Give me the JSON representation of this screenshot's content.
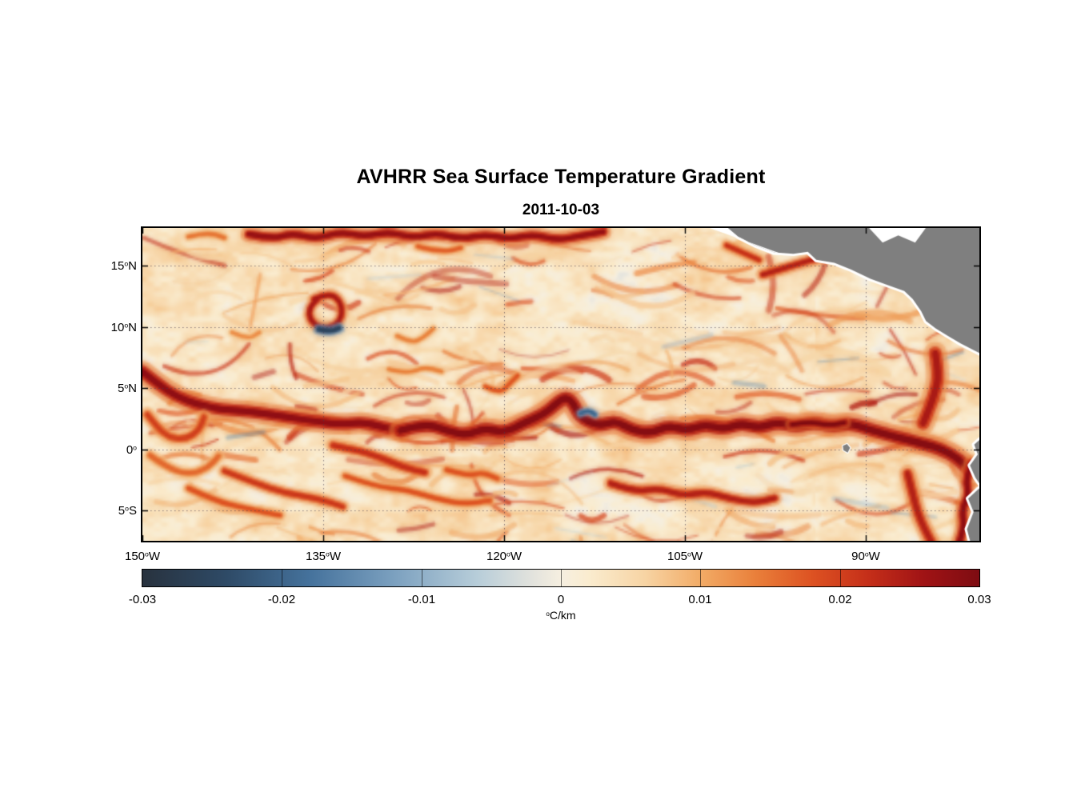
{
  "chart_data": {
    "type": "heatmap",
    "title": "AVHRR Sea Surface Temperature Gradient",
    "date": "2011-10-03",
    "units": "degC/km",
    "lon_range_degW": [
      150,
      80.6
    ],
    "lat_range_deg": [
      -7.5,
      18.1
    ],
    "grid": "dotted",
    "axes": {
      "lat_ticks": [
        {
          "num": "15",
          "deg": "o",
          "dir": "N",
          "value": 15
        },
        {
          "num": "10",
          "deg": "o",
          "dir": "N",
          "value": 10
        },
        {
          "num": "5",
          "deg": "o",
          "dir": "N",
          "value": 5
        },
        {
          "num": "0",
          "deg": "o",
          "dir": "",
          "value": 0
        },
        {
          "num": "5",
          "deg": "o",
          "dir": "S",
          "value": -5
        }
      ],
      "lon_ticks": [
        {
          "num": "150",
          "deg": "o",
          "dir": "W",
          "value": 150
        },
        {
          "num": "135",
          "deg": "o",
          "dir": "W",
          "value": 135
        },
        {
          "num": "120",
          "deg": "o",
          "dir": "W",
          "value": 120
        },
        {
          "num": "105",
          "deg": "o",
          "dir": "W",
          "value": 105
        },
        {
          "num": "90",
          "deg": "o",
          "dir": "W",
          "value": 90
        }
      ]
    },
    "colorbar": {
      "orientation": "horizontal",
      "min": -0.03,
      "max": 0.03,
      "ticks": [
        "-0.03",
        "-0.02",
        "-0.01",
        "0",
        "0.01",
        "0.02",
        "0.03"
      ],
      "unit_deg": "o",
      "unit": "C/km"
    },
    "colormap": {
      "stops": [
        {
          "v": -0.03,
          "c": "#28323e"
        },
        {
          "v": -0.024,
          "c": "#2e4a66"
        },
        {
          "v": -0.018,
          "c": "#45729c"
        },
        {
          "v": -0.012,
          "c": "#7ba0bf"
        },
        {
          "v": -0.006,
          "c": "#b7cdd9"
        },
        {
          "v": -0.002,
          "c": "#e3e3dd"
        },
        {
          "v": 0.0,
          "c": "#f6efe0"
        },
        {
          "v": 0.002,
          "c": "#faeccf"
        },
        {
          "v": 0.006,
          "c": "#f7d4a4"
        },
        {
          "v": 0.01,
          "c": "#f2ab66"
        },
        {
          "v": 0.014,
          "c": "#e97f3a"
        },
        {
          "v": 0.018,
          "c": "#dd5222"
        },
        {
          "v": 0.022,
          "c": "#c52f19"
        },
        {
          "v": 0.026,
          "c": "#a01315"
        },
        {
          "v": 0.03,
          "c": "#7e0c12"
        }
      ]
    },
    "land": {
      "fill": "#7f7f7f",
      "halo": "#ffffff",
      "polygons": {
        "central_america": [
          [
            101.8,
            18.4
          ],
          [
            100.6,
            17.4
          ],
          [
            99.2,
            16.7
          ],
          [
            97.6,
            16.1
          ],
          [
            96.0,
            16.0
          ],
          [
            94.8,
            16.15
          ],
          [
            94.1,
            15.5
          ],
          [
            92.6,
            15.25
          ],
          [
            91.2,
            14.7
          ],
          [
            89.6,
            13.95
          ],
          [
            88.2,
            13.45
          ],
          [
            86.8,
            12.95
          ],
          [
            86.1,
            12.3
          ],
          [
            85.4,
            11.3
          ],
          [
            85.0,
            10.5
          ],
          [
            84.2,
            9.9
          ],
          [
            83.2,
            9.3
          ],
          [
            82.1,
            8.65
          ],
          [
            81.1,
            8.15
          ],
          [
            80.2,
            7.7
          ],
          [
            79.8,
            18.4
          ]
        ],
        "south_america": [
          [
            80.2,
            1.1
          ],
          [
            81.0,
            0.4
          ],
          [
            80.7,
            -0.4
          ],
          [
            81.35,
            -1.3
          ],
          [
            80.9,
            -2.3
          ],
          [
            80.4,
            -3.0
          ],
          [
            81.5,
            -4.0
          ],
          [
            81.05,
            -5.1
          ],
          [
            81.6,
            -6.5
          ],
          [
            81.25,
            -7.8
          ],
          [
            79.8,
            -7.8
          ]
        ],
        "galapagos": [
          [
            91.9,
            0.3
          ],
          [
            91.55,
            0.45
          ],
          [
            91.3,
            0.15
          ],
          [
            91.5,
            -0.25
          ],
          [
            91.85,
            -0.05
          ]
        ]
      },
      "nodata_wedges": [
        [
          [
            103.8,
            18.4
          ],
          [
            97.0,
            16.0
          ],
          [
            97.6,
            16.1
          ],
          [
            99.2,
            16.7
          ],
          [
            100.6,
            17.4
          ],
          [
            101.8,
            18.4
          ]
        ],
        [
          [
            90.0,
            18.4
          ],
          [
            88.6,
            16.9
          ],
          [
            87.3,
            17.5
          ],
          [
            85.9,
            16.9
          ],
          [
            84.8,
            18.4
          ]
        ]
      ]
    },
    "features": [
      {
        "name": "west-equatorial-front",
        "path": [
          [
            150,
            6.4
          ],
          [
            148.6,
            5.3
          ],
          [
            147.2,
            4.4
          ],
          [
            145.4,
            3.7
          ],
          [
            143.4,
            3.3
          ],
          [
            141.4,
            3.2
          ],
          [
            139.4,
            2.9
          ],
          [
            137.4,
            2.6
          ],
          [
            135.4,
            2.3
          ],
          [
            133.4,
            2.1
          ],
          [
            131.8,
            2.3
          ],
          [
            130.2,
            1.9
          ],
          [
            128.6,
            1.6
          ]
        ],
        "width_deg": 0.75,
        "intensity": 0.028
      },
      {
        "name": "west-swirl",
        "path": [
          [
            149.6,
            2.9
          ],
          [
            148.8,
            1.9
          ],
          [
            147.8,
            1.0
          ],
          [
            146.4,
            0.9
          ],
          [
            145.3,
            1.6
          ],
          [
            144.9,
            2.7
          ]
        ],
        "width_deg": 0.5,
        "intensity": 0.02
      },
      {
        "name": "west-swirl-south",
        "path": [
          [
            149.4,
            -0.4
          ],
          [
            148.0,
            -1.4
          ],
          [
            146.2,
            -2.0
          ],
          [
            144.6,
            -1.5
          ],
          [
            143.7,
            -0.5
          ]
        ],
        "width_deg": 0.45,
        "intensity": 0.016
      },
      {
        "name": "sw-filament",
        "path": [
          [
            146.2,
            -3.1
          ],
          [
            143.8,
            -4.2
          ],
          [
            141.2,
            -4.8
          ],
          [
            138.6,
            -5.3
          ]
        ],
        "width_deg": 0.4,
        "intensity": 0.018
      },
      {
        "name": "sw-filament-2",
        "path": [
          [
            143.2,
            -1.7
          ],
          [
            140.6,
            -2.7
          ],
          [
            138.2,
            -3.5
          ],
          [
            135.6,
            -3.9
          ],
          [
            133.4,
            -4.6
          ]
        ],
        "width_deg": 0.45,
        "intensity": 0.021
      },
      {
        "name": "south-central-band",
        "path": [
          [
            133.2,
            -2.1
          ],
          [
            130.6,
            -3.0
          ],
          [
            128.2,
            -3.2
          ],
          [
            125.6,
            -4.0
          ],
          [
            123.2,
            -4.4
          ],
          [
            121.2,
            -4.1
          ]
        ],
        "width_deg": 0.4,
        "intensity": 0.018
      },
      {
        "name": "north-band",
        "path": [
          [
            141.2,
            17.6
          ],
          [
            139.2,
            17.2
          ],
          [
            137.6,
            17.7
          ],
          [
            135.6,
            17.2
          ],
          [
            133.6,
            17.8
          ],
          [
            131.6,
            17.4
          ],
          [
            129.6,
            17.8
          ],
          [
            127.6,
            17.3
          ],
          [
            125.6,
            17.7
          ],
          [
            123.6,
            17.2
          ],
          [
            121.6,
            17.6
          ],
          [
            119.6,
            17.2
          ],
          [
            117.6,
            17.6
          ],
          [
            115.6,
            17.1
          ],
          [
            113.6,
            17.5
          ],
          [
            111.8,
            17.8
          ]
        ],
        "width_deg": 0.55,
        "intensity": 0.027
      },
      {
        "name": "north-band-offshoot",
        "path": [
          [
            127.2,
            16.6
          ],
          [
            125.2,
            16.1
          ],
          [
            123.6,
            16.5
          ]
        ],
        "width_deg": 0.35,
        "intensity": 0.017
      },
      {
        "name": "eddy-ring-135w",
        "path": [
          [
            135.8,
            12.3
          ],
          [
            134.6,
            12.85
          ],
          [
            133.6,
            12.2
          ],
          [
            133.4,
            11.0
          ],
          [
            134.0,
            10.1
          ],
          [
            135.2,
            9.9
          ],
          [
            136.15,
            10.6
          ],
          [
            136.2,
            11.6
          ],
          [
            135.5,
            12.3
          ]
        ],
        "width_deg": 0.42,
        "intensity": 0.025
      },
      {
        "name": "eddy-cold-arc",
        "path": [
          [
            135.4,
            9.85
          ],
          [
            134.5,
            9.65
          ],
          [
            133.7,
            9.95
          ]
        ],
        "width_deg": 0.38,
        "intensity": -0.026
      },
      {
        "name": "equatorial-front-main",
        "path": [
          [
            128.6,
            1.6
          ],
          [
            126.6,
            2.2
          ],
          [
            124.8,
            1.6
          ],
          [
            123.2,
            1.2
          ],
          [
            121.6,
            1.8
          ],
          [
            120.0,
            1.4
          ],
          [
            118.4,
            2.2
          ],
          [
            116.8,
            2.9
          ],
          [
            115.8,
            3.7
          ],
          [
            114.9,
            4.4
          ],
          [
            114.2,
            3.7
          ],
          [
            113.8,
            2.8
          ],
          [
            113.0,
            2.3
          ],
          [
            112.0,
            2.0
          ],
          [
            110.8,
            2.4
          ],
          [
            109.4,
            1.6
          ],
          [
            107.8,
            1.4
          ],
          [
            106.4,
            2.0
          ],
          [
            104.8,
            1.6
          ],
          [
            103.4,
            2.1
          ],
          [
            101.8,
            1.7
          ],
          [
            100.4,
            2.2
          ],
          [
            98.8,
            1.8
          ],
          [
            97.4,
            2.3
          ],
          [
            95.8,
            1.9
          ],
          [
            94.4,
            2.3
          ],
          [
            92.8,
            1.9
          ],
          [
            91.4,
            2.2
          ],
          [
            89.8,
            1.7
          ],
          [
            88.4,
            1.3
          ],
          [
            86.8,
            0.9
          ],
          [
            85.2,
            0.5
          ],
          [
            83.8,
            0.1
          ],
          [
            82.4,
            -0.7
          ],
          [
            81.6,
            -1.5
          ]
        ],
        "width_deg": 0.8,
        "intensity": 0.029
      },
      {
        "name": "front-dark-core-95w",
        "path": [
          [
            96.2,
            2.1
          ],
          [
            94.6,
            2.35
          ],
          [
            93.2,
            2.0
          ],
          [
            91.8,
            2.25
          ]
        ],
        "width_deg": 0.42,
        "intensity": 0.03
      },
      {
        "name": "tiw-cusp-cold",
        "path": [
          [
            113.7,
            3.0
          ],
          [
            113.1,
            3.3
          ],
          [
            112.5,
            2.9
          ]
        ],
        "width_deg": 0.3,
        "intensity": -0.02
      },
      {
        "name": "papagayo-filament",
        "path": [
          [
            98.6,
            14.3
          ],
          [
            96.6,
            14.9
          ],
          [
            94.9,
            15.4
          ],
          [
            93.3,
            15.8
          ]
        ],
        "width_deg": 0.45,
        "intensity": 0.024
      },
      {
        "name": "east-meridional-front",
        "path": [
          [
            84.3,
            7.9
          ],
          [
            84.0,
            6.2
          ],
          [
            84.3,
            4.8
          ],
          [
            84.8,
            3.4
          ],
          [
            85.3,
            2.2
          ]
        ],
        "width_deg": 0.8,
        "intensity": 0.025
      },
      {
        "name": "southeast-filament",
        "path": [
          [
            86.6,
            -1.9
          ],
          [
            86.2,
            -3.4
          ],
          [
            85.8,
            -5.0
          ],
          [
            85.2,
            -6.4
          ],
          [
            84.6,
            -7.5
          ]
        ],
        "width_deg": 0.6,
        "intensity": 0.024
      },
      {
        "name": "peru-coastal-front",
        "path": [
          [
            81.3,
            -1.1
          ],
          [
            81.8,
            -2.3
          ],
          [
            81.5,
            -3.6
          ],
          [
            82.1,
            -4.8
          ],
          [
            81.9,
            -6.2
          ],
          [
            82.3,
            -7.5
          ]
        ],
        "width_deg": 0.55,
        "intensity": 0.028
      },
      {
        "name": "south-band-east",
        "path": [
          [
            111.2,
            -2.7
          ],
          [
            109.2,
            -3.4
          ],
          [
            107.2,
            -3.1
          ],
          [
            105.2,
            -3.7
          ],
          [
            103.2,
            -3.4
          ],
          [
            101.2,
            -4.0
          ],
          [
            99.2,
            -4.3
          ],
          [
            97.6,
            -3.9
          ]
        ],
        "width_deg": 0.5,
        "intensity": 0.024
      },
      {
        "name": "arc-120w-5n",
        "path": [
          [
            121.6,
            5.2
          ],
          [
            120.4,
            4.6
          ],
          [
            119.6,
            5.4
          ],
          [
            118.9,
            6.1
          ]
        ],
        "width_deg": 0.35,
        "intensity": 0.018
      },
      {
        "name": "arc-127w-6n",
        "path": [
          [
            129.6,
            6.6
          ],
          [
            128.1,
            6.2
          ],
          [
            126.6,
            6.8
          ],
          [
            125.2,
            6.4
          ]
        ],
        "width_deg": 0.3,
        "intensity": 0.014
      },
      {
        "name": "eq-southwest-tail",
        "path": [
          [
            134.2,
            0.4
          ],
          [
            132.2,
            0.0
          ],
          [
            130.2,
            -0.6
          ],
          [
            128.4,
            -1.4
          ],
          [
            126.6,
            -1.8
          ]
        ],
        "width_deg": 0.5,
        "intensity": 0.022
      },
      {
        "name": "south-band-mid",
        "path": [
          [
            124.8,
            -1.6
          ],
          [
            123.2,
            -2.1
          ],
          [
            121.8,
            -1.8
          ],
          [
            120.6,
            -2.3
          ]
        ],
        "width_deg": 0.4,
        "intensity": 0.018
      },
      {
        "name": "topleft-arc",
        "path": [
          [
            146.2,
            17.4
          ],
          [
            144.6,
            17.8
          ],
          [
            143.2,
            17.3
          ]
        ],
        "width_deg": 0.35,
        "intensity": 0.015
      },
      {
        "name": "arc-128w-9n",
        "path": [
          [
            128.9,
            9.3
          ],
          [
            127.7,
            8.7
          ],
          [
            126.7,
            9.2
          ],
          [
            125.9,
            9.9
          ]
        ],
        "width_deg": 0.32,
        "intensity": 0.014
      },
      {
        "name": "mexico-coast-filament",
        "path": [
          [
            101.6,
            16.7
          ],
          [
            100.2,
            16.1
          ],
          [
            98.9,
            15.5
          ]
        ],
        "width_deg": 0.4,
        "intensity": 0.022
      },
      {
        "name": "arc-141w-9n",
        "path": [
          [
            142.6,
            9.6
          ],
          [
            141.3,
            9.0
          ],
          [
            140.3,
            9.6
          ]
        ],
        "width_deg": 0.3,
        "intensity": 0.013
      }
    ]
  }
}
